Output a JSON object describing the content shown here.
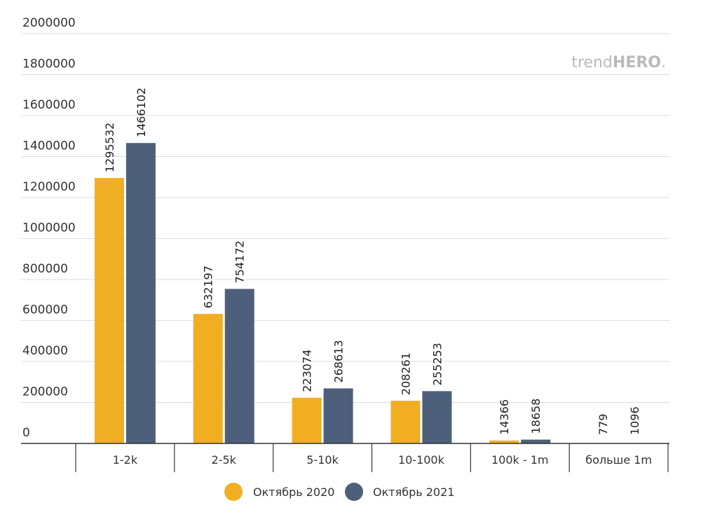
{
  "watermark": {
    "light": "trend",
    "bold": "HERO",
    "dot": "."
  },
  "chart_data": {
    "type": "bar",
    "categories": [
      "1-2k",
      "2-5k",
      "5-10k",
      "10-100k",
      "100k - 1m",
      "больше 1m"
    ],
    "series": [
      {
        "name": "Октябрь 2020",
        "color": "#f2ae22",
        "values": [
          1295532,
          632197,
          223074,
          208261,
          14366,
          779
        ]
      },
      {
        "name": "Октябрь 2021",
        "color": "#4d5f7a",
        "values": [
          1466102,
          754172,
          268613,
          255253,
          18658,
          1096
        ]
      }
    ],
    "data_labels": [
      [
        "1295532",
        "632197",
        "223074",
        "208261",
        "14366",
        "779"
      ],
      [
        "1466102",
        "754172",
        "268613",
        "255253",
        "18658",
        "1096"
      ]
    ],
    "yticks": [
      "0",
      "200000",
      "400000",
      "600000",
      "800000",
      "1000000",
      "1200000",
      "1400000",
      "1600000",
      "1800000",
      "2000000"
    ],
    "ylim": [
      0,
      2000000
    ],
    "grid": true,
    "legend_position": "bottom-center",
    "title": "",
    "xlabel": "",
    "ylabel": ""
  }
}
